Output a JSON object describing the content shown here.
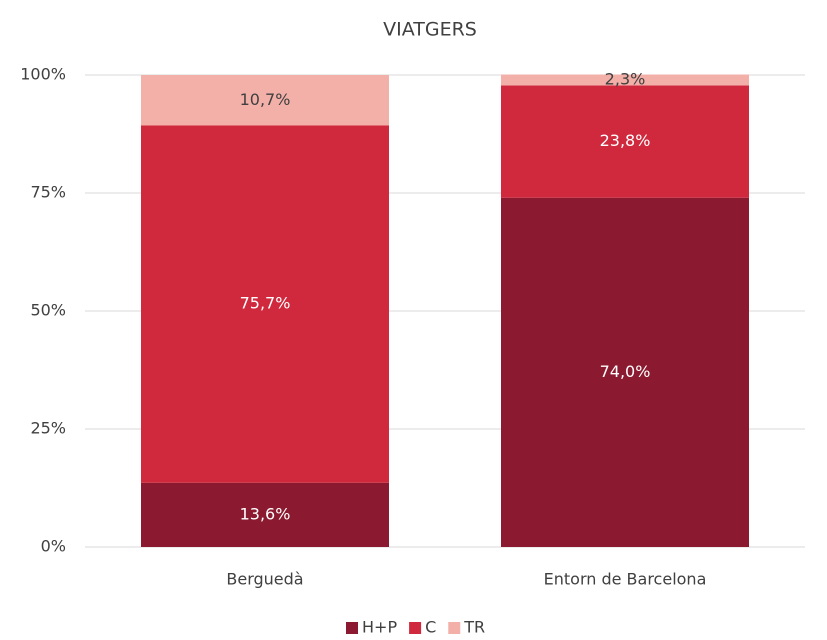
{
  "chart_data": {
    "type": "stacked_bar",
    "title": "VIATGERS",
    "categories": [
      "Berguedà",
      "Entorn de Barcelona"
    ],
    "series": [
      {
        "name": "H+P",
        "color": "#8b1a31",
        "values": [
          13.6,
          74.0
        ],
        "value_labels": [
          "13,6%",
          "74,0%"
        ],
        "label_color": "#ffffff"
      },
      {
        "name": "C",
        "color": "#d0293e",
        "values": [
          75.7,
          23.8
        ],
        "value_labels": [
          "75,7%",
          "23,8%"
        ],
        "label_color": "#ffffff"
      },
      {
        "name": "TR",
        "color": "#f2b0a8",
        "values": [
          10.7,
          2.3
        ],
        "value_labels": [
          "10,7%",
          "2,3%"
        ],
        "label_color": "#404040"
      }
    ],
    "ylim": [
      0,
      100
    ],
    "yticks": [
      {
        "value": 0,
        "label": "0%"
      },
      {
        "value": 25,
        "label": "25%"
      },
      {
        "value": 50,
        "label": "50%"
      },
      {
        "value": 75,
        "label": "75%"
      },
      {
        "value": 100,
        "label": "100%"
      }
    ],
    "grid": true,
    "legend": "bottom"
  }
}
